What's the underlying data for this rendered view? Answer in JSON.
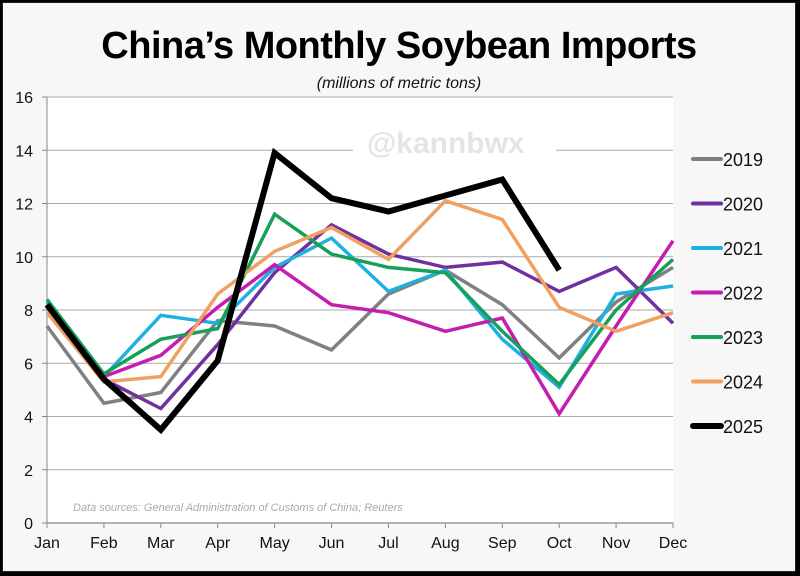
{
  "title": "China’s Monthly Soybean Imports",
  "subtitle": "(millions of metric tons)",
  "watermark": "@kannbwx",
  "source_note": "Data sources: General Administration of Customs of China; Reuters",
  "colors": {
    "2019": "#808080",
    "2020": "#7030a0",
    "2021": "#1fb0e0",
    "2022": "#c41eb0",
    "2023": "#16a058",
    "2024": "#f0a060",
    "2025": "#000000"
  },
  "chart_data": {
    "type": "line",
    "title": "China’s Monthly Soybean Imports",
    "subtitle": "(millions of metric tons)",
    "xlabel": "",
    "ylabel": "",
    "ylim": [
      0,
      16
    ],
    "yticks": [
      0,
      2,
      4,
      6,
      8,
      10,
      12,
      14,
      16
    ],
    "grid": true,
    "legend_position": "right",
    "categories": [
      "Jan",
      "Feb",
      "Mar",
      "Apr",
      "May",
      "Jun",
      "Jul",
      "Aug",
      "Sep",
      "Oct",
      "Nov",
      "Dec"
    ],
    "series": [
      {
        "name": "2019",
        "values": [
          7.4,
          4.5,
          4.9,
          7.6,
          7.4,
          6.5,
          8.6,
          9.5,
          8.2,
          6.2,
          8.3,
          9.6
        ]
      },
      {
        "name": "2020",
        "values": [
          8.2,
          5.4,
          4.3,
          6.7,
          9.4,
          11.2,
          10.1,
          9.6,
          9.8,
          8.7,
          9.6,
          7.5
        ]
      },
      {
        "name": "2021",
        "values": [
          8.3,
          5.5,
          7.8,
          7.5,
          9.6,
          10.7,
          8.7,
          9.5,
          6.9,
          5.1,
          8.6,
          8.9
        ]
      },
      {
        "name": "2022",
        "values": [
          8.2,
          5.5,
          6.3,
          8.1,
          9.7,
          8.2,
          7.9,
          7.2,
          7.7,
          4.1,
          7.4,
          10.6
        ]
      },
      {
        "name": "2023",
        "values": [
          8.4,
          5.6,
          6.9,
          7.3,
          11.6,
          10.1,
          9.6,
          9.4,
          7.2,
          5.2,
          8.0,
          9.9
        ]
      },
      {
        "name": "2024",
        "values": [
          7.9,
          5.3,
          5.5,
          8.6,
          10.2,
          11.1,
          9.9,
          12.1,
          11.4,
          8.1,
          7.2,
          7.9
        ]
      },
      {
        "name": "2025",
        "values": [
          8.2,
          5.4,
          3.5,
          6.1,
          13.9,
          12.2,
          11.7,
          12.3,
          12.9,
          9.5,
          null,
          null
        ]
      }
    ],
    "annotations": [
      "@kannbwx",
      "Data sources: General Administration of Customs of China; Reuters"
    ]
  }
}
